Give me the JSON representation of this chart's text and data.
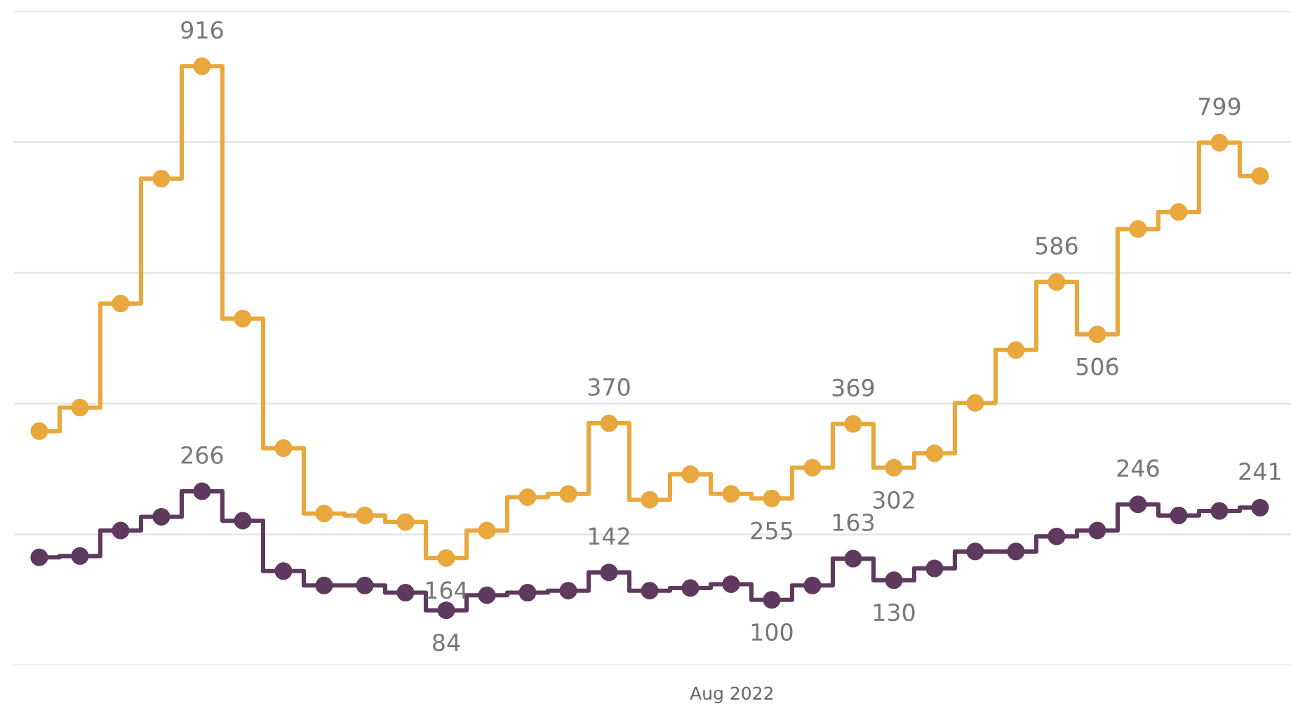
{
  "chart_data": {
    "type": "step",
    "categories": [
      null,
      null,
      null,
      null,
      null,
      null,
      null,
      null,
      null,
      null,
      null,
      null,
      null,
      null,
      null,
      null,
      null,
      null,
      null,
      null,
      null,
      null,
      null,
      null,
      null,
      null,
      null,
      null,
      null,
      null,
      null
    ],
    "annotations": [
      "Aug 2022"
    ],
    "series": [
      {
        "color": "#e8a83e",
        "values": [
          358,
          394,
          553,
          744,
          916,
          530,
          332,
          232,
          229,
          219,
          164,
          206,
          257,
          262,
          370,
          253,
          292,
          262,
          255,
          302,
          369,
          302,
          324,
          401,
          482,
          586,
          506,
          667,
          693,
          799,
          748
        ],
        "value_labels": [
          null,
          null,
          null,
          null,
          "916",
          null,
          null,
          null,
          null,
          null,
          "164",
          null,
          null,
          null,
          "370",
          null,
          null,
          null,
          "255",
          null,
          "369",
          "302",
          null,
          null,
          null,
          "586",
          "506",
          null,
          null,
          "799",
          null
        ]
      },
      {
        "color": "#5e3a5e",
        "values": [
          165,
          167,
          206,
          227,
          266,
          221,
          144,
          122,
          122,
          111,
          84,
          107,
          111,
          114,
          142,
          114,
          118,
          124,
          100,
          122,
          163,
          130,
          148,
          174,
          174,
          197,
          206,
          246,
          229,
          236,
          241
        ],
        "value_labels": [
          null,
          null,
          null,
          null,
          "266",
          null,
          null,
          null,
          null,
          null,
          "84",
          null,
          null,
          null,
          "142",
          null,
          null,
          null,
          "100",
          null,
          "163",
          "130",
          null,
          null,
          null,
          null,
          null,
          "246",
          null,
          null,
          "241"
        ]
      }
    ],
    "ylim": [
      0,
      1000
    ],
    "yticks": [
      {
        "value": 0,
        "label": null
      },
      {
        "value": 200,
        "label": null
      },
      {
        "value": 400,
        "label": null
      },
      {
        "value": 600,
        "label": null
      },
      {
        "value": 800,
        "label": null
      },
      {
        "value": 1000,
        "label": null
      }
    ],
    "grid": "y",
    "marker": "circle",
    "line_style": "solid"
  }
}
